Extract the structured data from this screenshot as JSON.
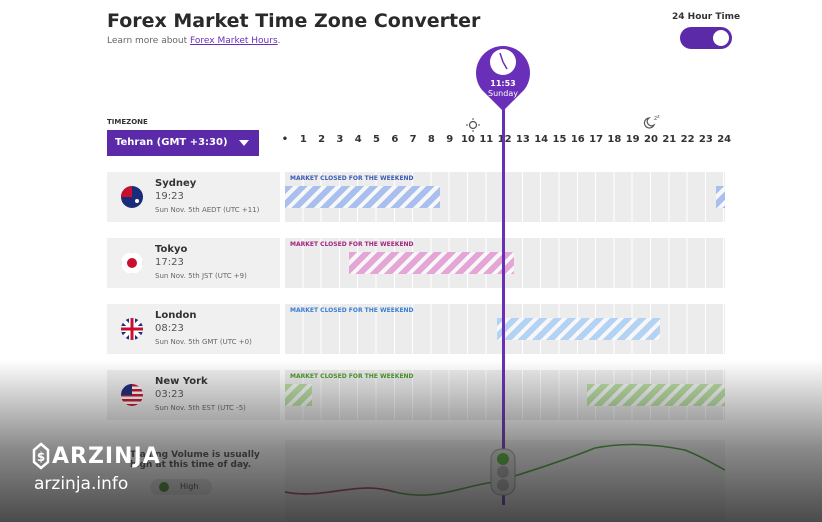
{
  "header": {
    "title": "Forex Market Time Zone Converter",
    "subtitle_prefix": "Learn more about",
    "link": "Forex Market Hours",
    "subtitle_suffix": "."
  },
  "toggle": {
    "label": "24 Hour Time"
  },
  "marker": {
    "time": "11:53",
    "day": "Sunday"
  },
  "timezone": {
    "label": "TIMEZONE",
    "selected": "Tehran (GMT +3:30)"
  },
  "hours": [
    "•",
    "1",
    "2",
    "3",
    "4",
    "5",
    "6",
    "7",
    "8",
    "9",
    "10",
    "11",
    "12",
    "13",
    "14",
    "15",
    "16",
    "17",
    "18",
    "19",
    "20",
    "21",
    "22",
    "23",
    "24"
  ],
  "markets": [
    {
      "city": "Sydney",
      "time": "19:23",
      "date": "Sun Nov. 5th AEDT (UTC +11)",
      "status": "MARKET CLOSED FOR THE WEEKEND"
    },
    {
      "city": "Tokyo",
      "time": "17:23",
      "date": "Sun Nov. 5th JST (UTC +9)",
      "status": "MARKET CLOSED FOR THE WEEKEND"
    },
    {
      "city": "London",
      "time": "08:23",
      "date": "Sun Nov. 5th GMT (UTC +0)",
      "status": "MARKET CLOSED FOR THE WEEKEND"
    },
    {
      "city": "New York",
      "time": "03:23",
      "date": "Sun Nov. 5th EST (UTC -5)",
      "status": "MARKET CLOSED FOR THE WEEKEND"
    }
  ],
  "volume": {
    "text": "Trading Volume is usually high at this time of day.",
    "legend": "High"
  },
  "watermark": {
    "brand": "ARZINJA",
    "site": "arzinja.info"
  }
}
